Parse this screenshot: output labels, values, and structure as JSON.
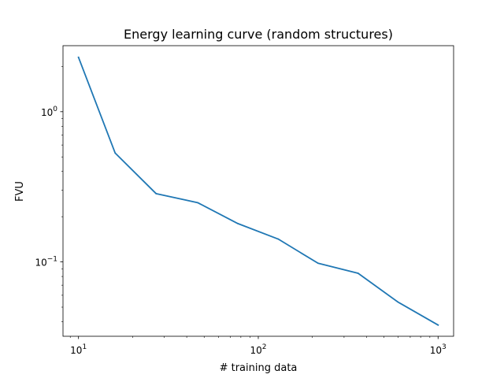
{
  "chart_data": {
    "type": "line",
    "title": "Energy learning curve (random structures)",
    "xlabel": "# training data",
    "ylabel": "FVU",
    "xscale": "log",
    "yscale": "log",
    "xlim": [
      8.2,
      1220
    ],
    "ylim": [
      0.032,
      2.75
    ],
    "x_ticks": [
      {
        "base": "10",
        "exp": "1",
        "value": 10
      },
      {
        "base": "10",
        "exp": "2",
        "value": 100
      },
      {
        "base": "10",
        "exp": "3",
        "value": 1000
      }
    ],
    "y_ticks": [
      {
        "base": "10",
        "exp": "−1",
        "value": 0.1
      },
      {
        "base": "10",
        "exp": "0",
        "value": 1
      }
    ],
    "grid": false,
    "series": [
      {
        "color": "#1f77b4",
        "x": [
          10,
          16,
          27,
          46,
          77,
          129,
          215,
          359,
          599,
          1000
        ],
        "y": [
          2.3,
          0.53,
          0.285,
          0.248,
          0.18,
          0.142,
          0.098,
          0.084,
          0.054,
          0.038
        ]
      }
    ]
  }
}
